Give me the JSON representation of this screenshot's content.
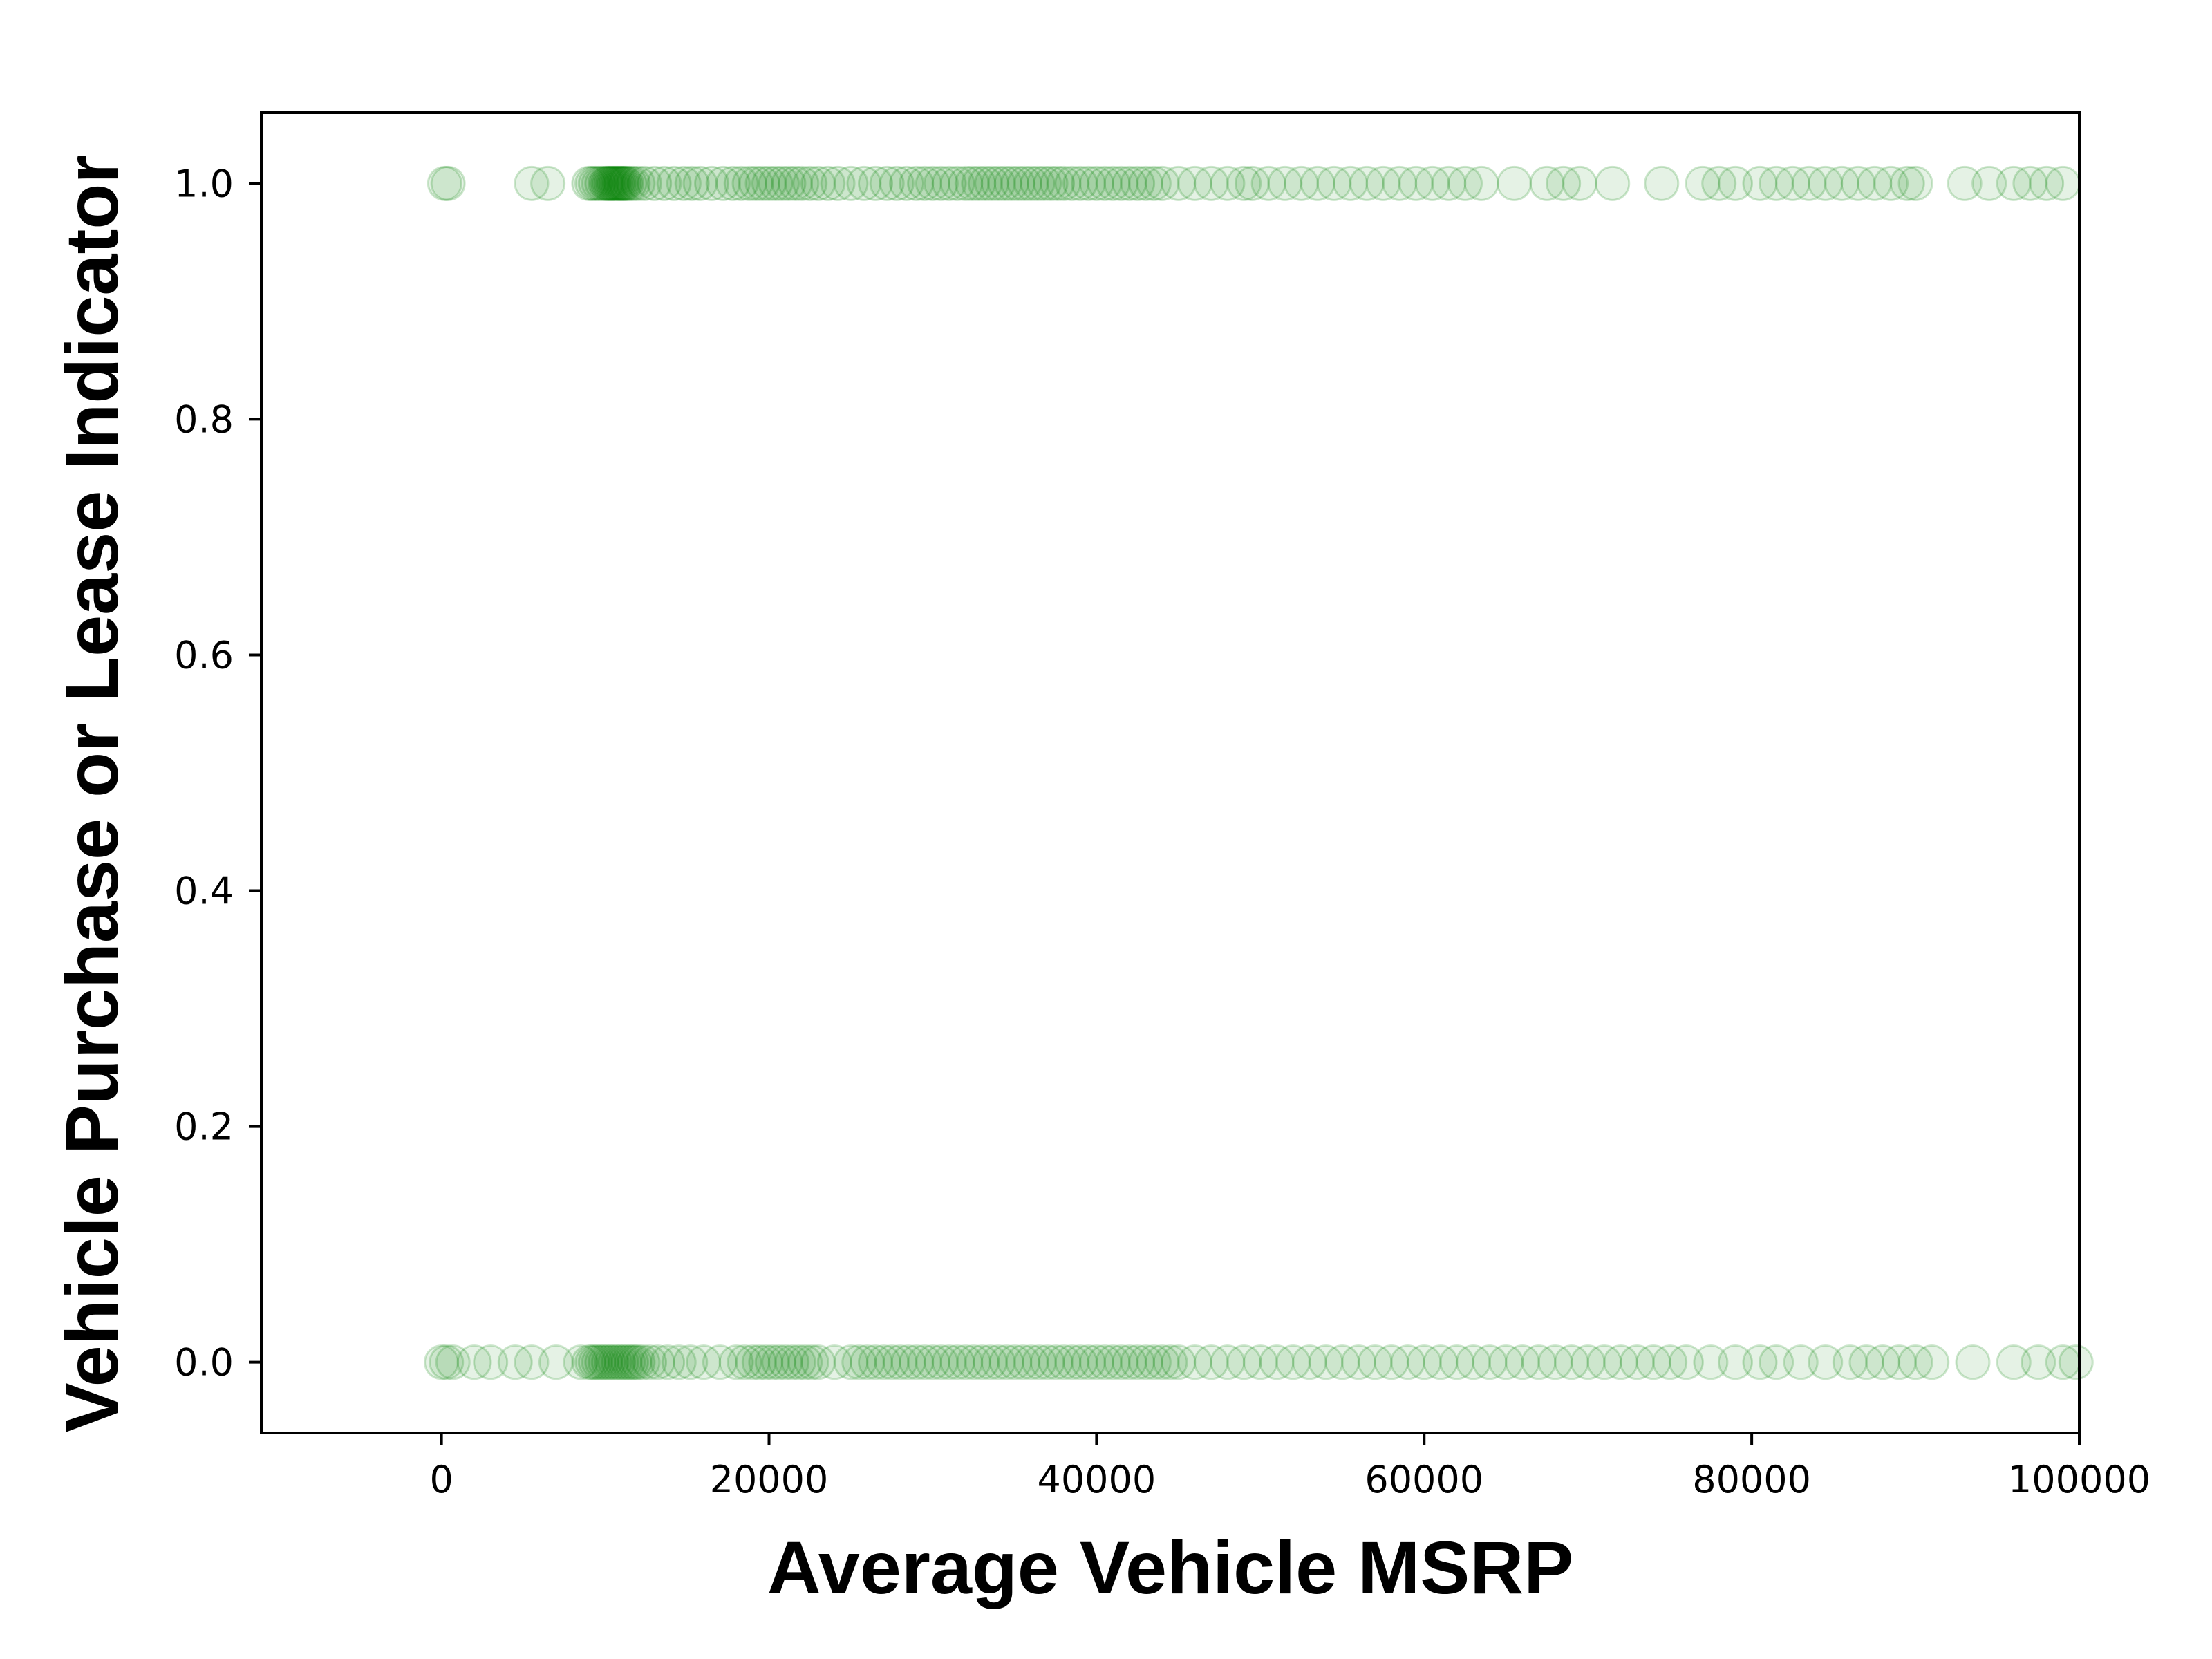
{
  "chart_data": {
    "type": "scatter",
    "title": "",
    "xlabel": "Average Vehicle MSRP",
    "ylabel": "Vehicle Purchase or Lease Indicator",
    "xlim": [
      -11000,
      100000
    ],
    "ylim": [
      -0.06,
      1.06
    ],
    "x_ticks": [
      0,
      20000,
      40000,
      60000,
      80000,
      100000
    ],
    "y_ticks": [
      0.0,
      0.2,
      0.4,
      0.6,
      0.8,
      1.0
    ],
    "x_tick_labels": [
      "0",
      "20000",
      "40000",
      "60000",
      "80000",
      "100000"
    ],
    "y_tick_labels": [
      "0.0",
      "0.2",
      "0.4",
      "0.6",
      "0.8",
      "1.0"
    ],
    "grid": false,
    "marker": "hollow circle, semi-transparent",
    "color": "#008000",
    "series": [
      {
        "y": 1.0,
        "x": [
          200,
          400,
          5500,
          6500,
          9000,
          9200,
          9400,
          9600,
          9800,
          10000,
          10100,
          10200,
          10300,
          10400,
          10500,
          10600,
          10700,
          10800,
          10900,
          11000,
          11100,
          11200,
          11300,
          11500,
          11700,
          12000,
          12400,
          13000,
          13600,
          14200,
          14800,
          15300,
          15800,
          16500,
          17200,
          17800,
          18300,
          18800,
          19200,
          19600,
          20000,
          20400,
          20800,
          21200,
          21600,
          22000,
          22500,
          23000,
          23600,
          24200,
          25000,
          25800,
          26500,
          27200,
          27800,
          28400,
          29000,
          29500,
          30000,
          30500,
          31000,
          31500,
          32000,
          32400,
          32800,
          33200,
          33600,
          34000,
          34400,
          34800,
          35200,
          35600,
          36000,
          36400,
          36800,
          37200,
          37600,
          38000,
          38500,
          39000,
          39500,
          40000,
          40500,
          41000,
          41500,
          42000,
          42500,
          43000,
          43500,
          44000,
          45000,
          46000,
          47000,
          48000,
          49000,
          49500,
          50500,
          51500,
          52500,
          53500,
          54500,
          55500,
          56500,
          57500,
          58500,
          59500,
          60500,
          61500,
          62500,
          63500,
          65500,
          67500,
          68500,
          69500,
          71500,
          74500,
          77000,
          78000,
          79000,
          80500,
          81500,
          82500,
          83500,
          84500,
          85500,
          86500,
          87500,
          88500,
          89500,
          90000,
          93000,
          94500,
          96000,
          97000,
          98000,
          99000
        ]
      },
      {
        "y": 0.0,
        "x": [
          0,
          300,
          700,
          2000,
          3000,
          4500,
          5500,
          7000,
          8500,
          9000,
          9200,
          9400,
          9600,
          9800,
          10000,
          10200,
          10400,
          10600,
          10800,
          11000,
          11200,
          11400,
          11600,
          11800,
          12000,
          12300,
          12700,
          13200,
          13800,
          14500,
          15200,
          16000,
          17000,
          18000,
          18500,
          19000,
          19400,
          19800,
          20200,
          20600,
          21000,
          21400,
          21800,
          22200,
          22600,
          23000,
          24000,
          25000,
          25500,
          26000,
          26500,
          27000,
          27500,
          28000,
          28500,
          29000,
          29500,
          30000,
          30500,
          31000,
          31500,
          32000,
          32500,
          33000,
          33500,
          34000,
          34500,
          35000,
          35500,
          36000,
          36500,
          37000,
          37500,
          38000,
          38500,
          39000,
          39500,
          40000,
          40500,
          41000,
          41500,
          42000,
          42500,
          43000,
          43500,
          44000,
          44500,
          45000,
          46000,
          47000,
          48000,
          49000,
          50000,
          51000,
          52000,
          53000,
          54000,
          55000,
          56000,
          57000,
          58000,
          59000,
          60000,
          61000,
          62000,
          63000,
          64000,
          65000,
          66000,
          67000,
          68000,
          69000,
          70000,
          71000,
          72000,
          73000,
          74000,
          75000,
          76000,
          77500,
          79000,
          80500,
          81500,
          83000,
          84500,
          86000,
          87000,
          88000,
          89000,
          90000,
          91000,
          93500,
          96000,
          97500,
          99000,
          99800
        ]
      }
    ]
  }
}
